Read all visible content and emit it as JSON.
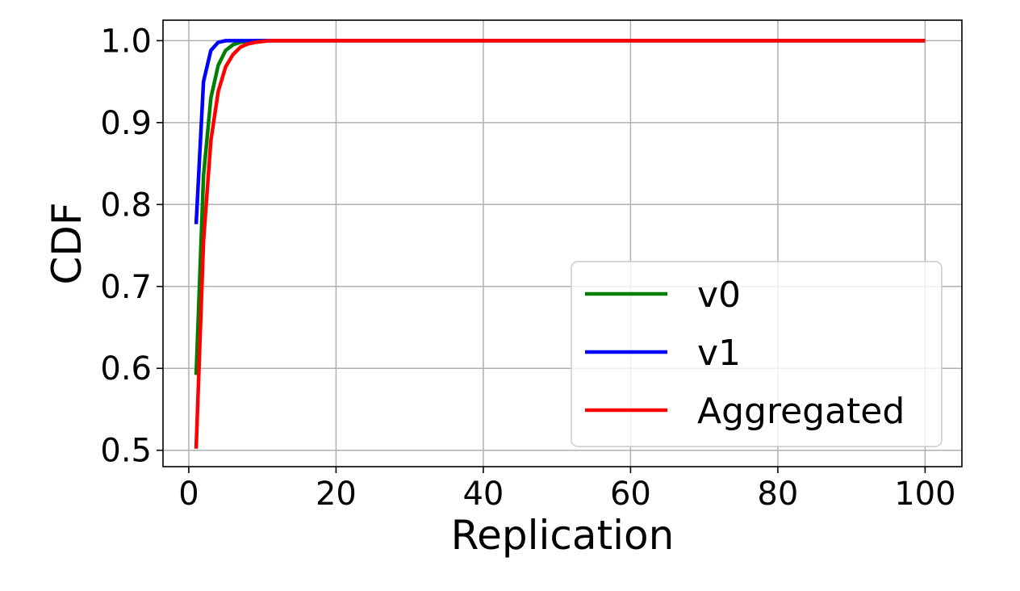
{
  "chart_data": {
    "type": "line",
    "title": "",
    "xlabel": "Replication",
    "ylabel": "CDF",
    "xlim": [
      -3.5,
      105
    ],
    "ylim": [
      0.48,
      1.025
    ],
    "xticks": [
      0,
      20,
      40,
      60,
      80,
      100
    ],
    "yticks": [
      0.5,
      0.6,
      0.7,
      0.8,
      0.9,
      1.0
    ],
    "xtick_labels": [
      "0",
      "20",
      "40",
      "60",
      "80",
      "100"
    ],
    "ytick_labels": [
      "0.5",
      "0.6",
      "0.7",
      "0.8",
      "0.9",
      "1.0"
    ],
    "grid": true,
    "legend_position": "lower-right",
    "series": [
      {
        "name": "v0",
        "color": "#008000",
        "x": [
          1,
          2,
          3,
          4,
          5,
          6,
          7,
          8,
          9,
          10,
          12,
          15,
          20,
          30,
          50,
          100
        ],
        "y": [
          0.592,
          0.835,
          0.93,
          0.97,
          0.988,
          0.995,
          0.998,
          0.999,
          1.0,
          1.0,
          1.0,
          1.0,
          1.0,
          1.0,
          1.0,
          1.0
        ]
      },
      {
        "name": "v1",
        "color": "#0000ff",
        "x": [
          1,
          2,
          3,
          4,
          5,
          6,
          7,
          8,
          10,
          15,
          20,
          50,
          100
        ],
        "y": [
          0.776,
          0.95,
          0.988,
          0.998,
          1.0,
          1.0,
          1.0,
          1.0,
          1.0,
          1.0,
          1.0,
          1.0,
          1.0
        ]
      },
      {
        "name": "Aggregated",
        "color": "#ff0000",
        "x": [
          1,
          2,
          3,
          4,
          5,
          6,
          7,
          8,
          9,
          10,
          11,
          12,
          15,
          20,
          30,
          50,
          100
        ],
        "y": [
          0.502,
          0.755,
          0.878,
          0.938,
          0.968,
          0.983,
          0.992,
          0.996,
          0.998,
          0.999,
          1.0,
          1.0,
          1.0,
          1.0,
          1.0,
          1.0,
          1.0
        ]
      }
    ]
  }
}
